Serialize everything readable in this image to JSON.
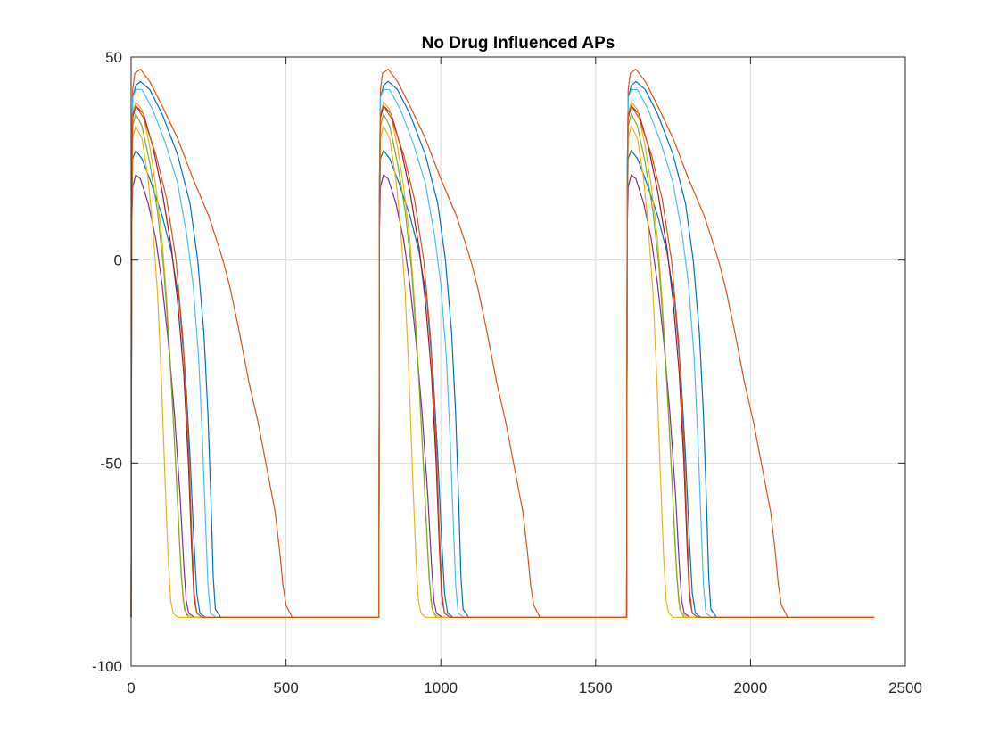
{
  "chart_data": {
    "type": "line",
    "title": "No Drug Influenced APs",
    "xlabel": "",
    "ylabel": "",
    "xlim": [
      0,
      2500
    ],
    "ylim": [
      -100,
      50
    ],
    "xticks": [
      0,
      500,
      1000,
      1500,
      2000,
      2500
    ],
    "yticks": [
      -100,
      -50,
      0,
      50
    ],
    "grid": true,
    "legend": "none",
    "period": 800,
    "cycles": 3,
    "x_end": 2400,
    "rest": -88,
    "series": [
      {
        "color": "#D95319",
        "points": [
          [
            0,
            -88
          ],
          [
            2,
            20
          ],
          [
            5,
            42
          ],
          [
            12,
            46
          ],
          [
            30,
            47
          ],
          [
            60,
            44
          ],
          [
            100,
            38
          ],
          [
            150,
            30
          ],
          [
            200,
            20
          ],
          [
            250,
            11
          ],
          [
            280,
            4
          ],
          [
            300,
            -1
          ],
          [
            320,
            -7
          ],
          [
            350,
            -18
          ],
          [
            380,
            -30
          ],
          [
            410,
            -40
          ],
          [
            440,
            -52
          ],
          [
            465,
            -62
          ],
          [
            480,
            -72
          ],
          [
            490,
            -80
          ],
          [
            500,
            -85
          ],
          [
            520,
            -88
          ],
          [
            800,
            -88
          ]
        ]
      },
      {
        "color": "#0072BD",
        "points": [
          [
            0,
            -88
          ],
          [
            2,
            20
          ],
          [
            5,
            40
          ],
          [
            15,
            43
          ],
          [
            30,
            44
          ],
          [
            60,
            42
          ],
          [
            100,
            36
          ],
          [
            150,
            26
          ],
          [
            190,
            14
          ],
          [
            215,
            0
          ],
          [
            235,
            -18
          ],
          [
            248,
            -38
          ],
          [
            258,
            -60
          ],
          [
            265,
            -78
          ],
          [
            272,
            -86
          ],
          [
            290,
            -88
          ],
          [
            800,
            -88
          ]
        ]
      },
      {
        "color": "#4DBEEE",
        "points": [
          [
            0,
            -88
          ],
          [
            2,
            20
          ],
          [
            5,
            40
          ],
          [
            15,
            42
          ],
          [
            35,
            42
          ],
          [
            70,
            37
          ],
          [
            110,
            29
          ],
          [
            150,
            19
          ],
          [
            180,
            6
          ],
          [
            200,
            -6
          ],
          [
            218,
            -24
          ],
          [
            230,
            -44
          ],
          [
            240,
            -64
          ],
          [
            248,
            -80
          ],
          [
            256,
            -87
          ],
          [
            275,
            -88
          ],
          [
            800,
            -88
          ]
        ]
      },
      {
        "color": "#0072BD",
        "points": [
          [
            0,
            -88
          ],
          [
            2,
            10
          ],
          [
            5,
            25
          ],
          [
            15,
            27
          ],
          [
            35,
            25
          ],
          [
            60,
            20
          ],
          [
            100,
            11
          ],
          [
            130,
            2
          ],
          [
            155,
            -10
          ],
          [
            175,
            -28
          ],
          [
            190,
            -48
          ],
          [
            202,
            -68
          ],
          [
            212,
            -82
          ],
          [
            222,
            -87
          ],
          [
            240,
            -88
          ],
          [
            800,
            -88
          ]
        ]
      },
      {
        "color": "#A2142F",
        "points": [
          [
            0,
            -88
          ],
          [
            2,
            15
          ],
          [
            5,
            35
          ],
          [
            15,
            38
          ],
          [
            40,
            36
          ],
          [
            70,
            28
          ],
          [
            100,
            17
          ],
          [
            130,
            3
          ],
          [
            150,
            -10
          ],
          [
            170,
            -28
          ],
          [
            185,
            -50
          ],
          [
            195,
            -70
          ],
          [
            203,
            -83
          ],
          [
            212,
            -87
          ],
          [
            230,
            -88
          ],
          [
            800,
            -88
          ]
        ]
      },
      {
        "color": "#EDB120",
        "points": [
          [
            0,
            -88
          ],
          [
            2,
            15
          ],
          [
            5,
            36
          ],
          [
            15,
            39
          ],
          [
            35,
            37
          ],
          [
            60,
            28
          ],
          [
            80,
            18
          ],
          [
            100,
            5
          ],
          [
            115,
            -10
          ],
          [
            130,
            -30
          ],
          [
            145,
            -52
          ],
          [
            158,
            -72
          ],
          [
            168,
            -84
          ],
          [
            178,
            -87
          ],
          [
            195,
            -88
          ],
          [
            800,
            -88
          ]
        ]
      },
      {
        "color": "#7E2F8E",
        "points": [
          [
            0,
            -88
          ],
          [
            2,
            8
          ],
          [
            5,
            18
          ],
          [
            15,
            21
          ],
          [
            30,
            20
          ],
          [
            55,
            14
          ],
          [
            80,
            5
          ],
          [
            100,
            -6
          ],
          [
            120,
            -20
          ],
          [
            140,
            -38
          ],
          [
            158,
            -58
          ],
          [
            170,
            -75
          ],
          [
            178,
            -84
          ],
          [
            186,
            -87
          ],
          [
            205,
            -88
          ],
          [
            800,
            -88
          ]
        ]
      },
      {
        "color": "#77AC30",
        "points": [
          [
            0,
            -88
          ],
          [
            2,
            15
          ],
          [
            5,
            33
          ],
          [
            15,
            36
          ],
          [
            35,
            33
          ],
          [
            60,
            24
          ],
          [
            85,
            12
          ],
          [
            105,
            -2
          ],
          [
            122,
            -20
          ],
          [
            138,
            -42
          ],
          [
            152,
            -63
          ],
          [
            162,
            -78
          ],
          [
            172,
            -86
          ],
          [
            185,
            -88
          ],
          [
            800,
            -88
          ]
        ]
      },
      {
        "color": "#EDB120",
        "points": [
          [
            0,
            -88
          ],
          [
            2,
            12
          ],
          [
            5,
            30
          ],
          [
            15,
            33
          ],
          [
            35,
            30
          ],
          [
            55,
            20
          ],
          [
            70,
            8
          ],
          [
            85,
            -8
          ],
          [
            98,
            -30
          ],
          [
            110,
            -55
          ],
          [
            120,
            -74
          ],
          [
            128,
            -84
          ],
          [
            136,
            -87
          ],
          [
            150,
            -88
          ],
          [
            800,
            -88
          ]
        ]
      },
      {
        "color": "#D95319",
        "points": [
          [
            0,
            -88
          ],
          [
            2,
            15
          ],
          [
            5,
            36
          ],
          [
            15,
            38
          ],
          [
            40,
            35
          ],
          [
            80,
            26
          ],
          [
            115,
            15
          ],
          [
            145,
            0
          ],
          [
            168,
            -20
          ],
          [
            185,
            -45
          ],
          [
            196,
            -68
          ],
          [
            204,
            -82
          ],
          [
            212,
            -87
          ],
          [
            230,
            -88
          ],
          [
            800,
            -88
          ]
        ]
      }
    ]
  }
}
